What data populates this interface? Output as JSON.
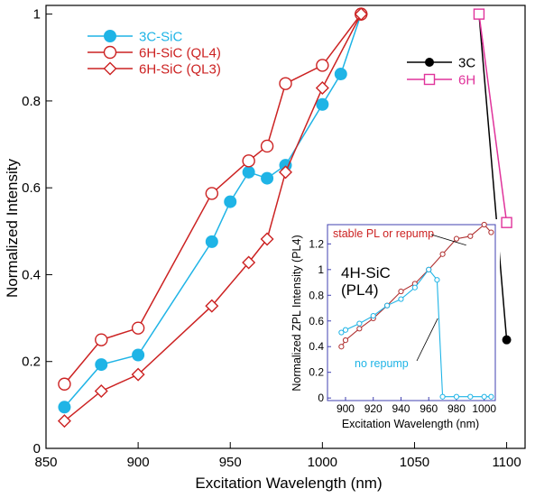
{
  "chart_data": [
    {
      "type": "line",
      "xlabel": "Excitation Wavelength (nm)",
      "ylabel": "Normalized Intensity",
      "xlim": [
        850,
        1110
      ],
      "ylim": [
        0,
        1.02
      ],
      "x_ticks": [
        850,
        900,
        950,
        1000,
        1050,
        1100
      ],
      "y_ticks": [
        0,
        0.2,
        0.4,
        0.6,
        0.8,
        1
      ],
      "x_tick_labels": [
        "850",
        "900",
        "950",
        "1000",
        "1050",
        "1100"
      ],
      "y_tick_labels": [
        "0",
        "0.2",
        "0.4",
        "0.6",
        "0.8",
        "1"
      ],
      "grid": false,
      "legends": [
        {
          "placement": "top-left",
          "entries": [
            {
              "label": "3C-SiC",
              "series": 0
            },
            {
              "label": "6H-SiC (QL4)",
              "series": 1
            },
            {
              "label": "6H-SiC (QL3)",
              "series": 2
            }
          ]
        },
        {
          "placement": "top-right",
          "entries": [
            {
              "label": "3C",
              "series": 3
            },
            {
              "label": "6H",
              "series": 4
            }
          ]
        }
      ],
      "series": [
        {
          "name": "3C-SiC",
          "color": "#1fb4e6",
          "marker": "filled-circle",
          "x": [
            860,
            880,
            900,
            940,
            950,
            960,
            970,
            980,
            1000,
            1010,
            1021
          ],
          "y": [
            0.095,
            0.193,
            0.215,
            0.476,
            0.568,
            0.636,
            0.622,
            0.652,
            0.792,
            0.862,
            1.0
          ]
        },
        {
          "name": "6H-SiC (QL4)",
          "color": "#cc2222",
          "marker": "open-circle",
          "x": [
            860,
            880,
            900,
            940,
            960,
            970,
            980,
            1000,
            1021
          ],
          "y": [
            0.148,
            0.25,
            0.277,
            0.587,
            0.662,
            0.696,
            0.84,
            0.882,
            1.0
          ]
        },
        {
          "name": "6H-SiC (QL3)",
          "color": "#cc2222",
          "marker": "open-diamond",
          "x": [
            860,
            880,
            900,
            940,
            960,
            970,
            980,
            1000,
            1021
          ],
          "y": [
            0.063,
            0.132,
            0.17,
            0.328,
            0.428,
            0.482,
            0.636,
            0.83,
            1.0
          ]
        },
        {
          "name": "3C",
          "color": "#000000",
          "marker": "filled-circle",
          "x": [
            1085,
            1100
          ],
          "y": [
            1.0,
            0.25
          ]
        },
        {
          "name": "6H",
          "color": "#e0339b",
          "marker": "open-square",
          "x": [
            1085,
            1100
          ],
          "y": [
            1.0,
            0.52
          ]
        }
      ]
    },
    {
      "type": "line",
      "title": "4H-SiC\n(PL4)",
      "xlabel": "Excitation Wavelength (nm)",
      "ylabel": "Normalized ZPL Intensity (PL4)",
      "xlim": [
        887,
        1008
      ],
      "ylim": [
        -0.02,
        1.35
      ],
      "x_ticks": [
        900,
        920,
        940,
        960,
        980,
        1000
      ],
      "y_ticks": [
        0,
        0.2,
        0.4,
        0.6,
        0.8,
        1,
        1.2
      ],
      "x_tick_labels": [
        "900",
        "920",
        "940",
        "960",
        "980",
        "1000"
      ],
      "y_tick_labels": [
        "0",
        "0.2",
        "0.4",
        "0.6",
        "0.8",
        "1",
        "1.2"
      ],
      "frame_color": "#4040b0",
      "grid": false,
      "annotations": [
        {
          "text": "stable PL or repump",
          "color": "#cc2222",
          "series": 0
        },
        {
          "text": "no repump",
          "color": "#1fb4e6",
          "series": 1
        }
      ],
      "series": [
        {
          "color": "#b03030",
          "marker": "small-open-circle",
          "x": [
            897,
            900,
            910,
            920,
            930,
            940,
            950,
            960,
            970,
            980,
            990,
            1000,
            1005
          ],
          "y": [
            0.4,
            0.45,
            0.54,
            0.62,
            0.72,
            0.83,
            0.89,
            1.0,
            1.12,
            1.24,
            1.26,
            1.35,
            1.29
          ]
        },
        {
          "color": "#1fb4e6",
          "marker": "small-open-circle",
          "x": [
            897,
            900,
            910,
            920,
            930,
            940,
            950,
            960,
            966,
            970,
            980,
            990,
            1000,
            1005
          ],
          "y": [
            0.51,
            0.53,
            0.58,
            0.64,
            0.72,
            0.77,
            0.86,
            1.0,
            0.92,
            0.01,
            0.01,
            0.01,
            0.01,
            0.01
          ]
        }
      ]
    }
  ]
}
